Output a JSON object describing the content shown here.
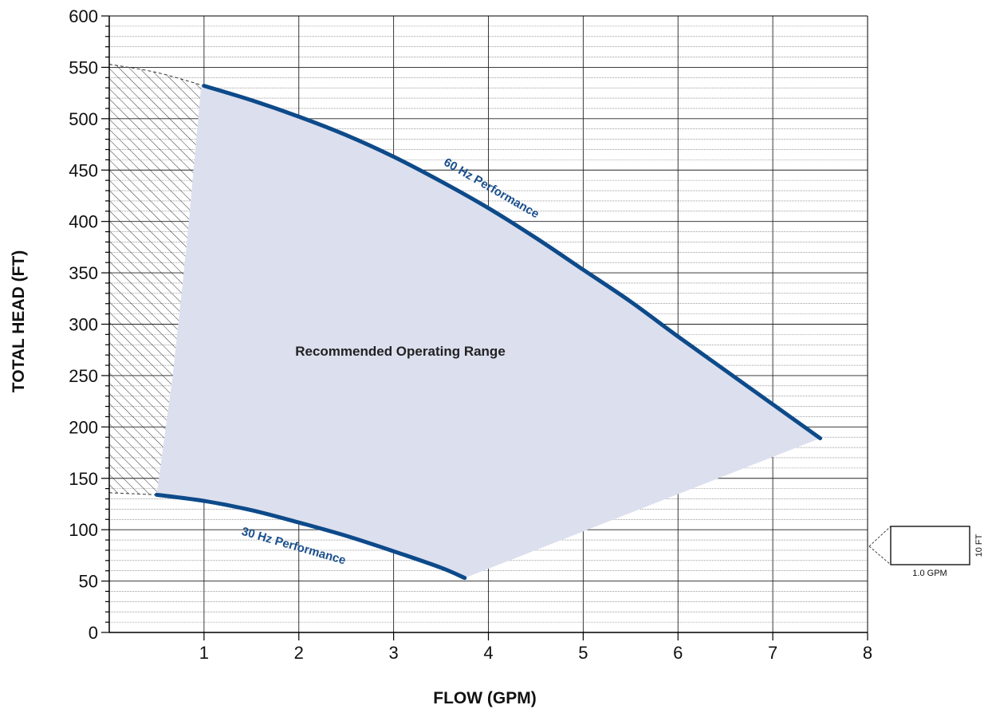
{
  "chart_data": {
    "type": "line",
    "xlabel": "FLOW (GPM)",
    "ylabel": "TOTAL HEAD (FT)",
    "xlim": [
      0,
      8
    ],
    "ylim": [
      0,
      600
    ],
    "x_ticks": [
      "1",
      "2",
      "3",
      "4",
      "5",
      "6",
      "7",
      "8"
    ],
    "y_ticks": [
      "0",
      "50",
      "100",
      "150",
      "200",
      "250",
      "300",
      "350",
      "400",
      "450",
      "500",
      "550",
      "600"
    ],
    "grid": true,
    "series": [
      {
        "name": "60 Hz Performance",
        "color": "#0d4a8a",
        "x": [
          1.0,
          1.5,
          2.0,
          2.5,
          3.0,
          3.5,
          4.0,
          4.5,
          5.0,
          5.5,
          6.0,
          6.5,
          7.0,
          7.5
        ],
        "y": [
          532,
          518,
          502,
          484,
          463,
          439,
          413,
          384,
          353,
          322,
          288,
          255,
          222,
          189
        ]
      },
      {
        "name": "30 Hz Performance",
        "color": "#0d4a8a",
        "x": [
          0.5,
          1.0,
          1.5,
          2.0,
          2.5,
          3.0,
          3.5,
          3.75
        ],
        "y": [
          134,
          128,
          119,
          107,
          94,
          79,
          63,
          53
        ]
      }
    ],
    "region_label": "Recommended Operating Range",
    "region_color": "#dcdfee",
    "extrapolated_60hz": {
      "x": [
        0.0,
        0.5,
        1.0
      ],
      "y": [
        553,
        545,
        532
      ]
    },
    "extrapolated_30hz": {
      "x": [
        0.0,
        0.25,
        0.5
      ],
      "y": [
        136,
        135,
        134
      ]
    },
    "hatched_zone_boundary": {
      "x": [
        0.5,
        0.67,
        0.82,
        0.97
      ],
      "y": [
        134,
        250,
        380,
        532
      ]
    },
    "scale_box": {
      "width_label": "1.0 GPM",
      "height_label": "10 FT"
    }
  }
}
